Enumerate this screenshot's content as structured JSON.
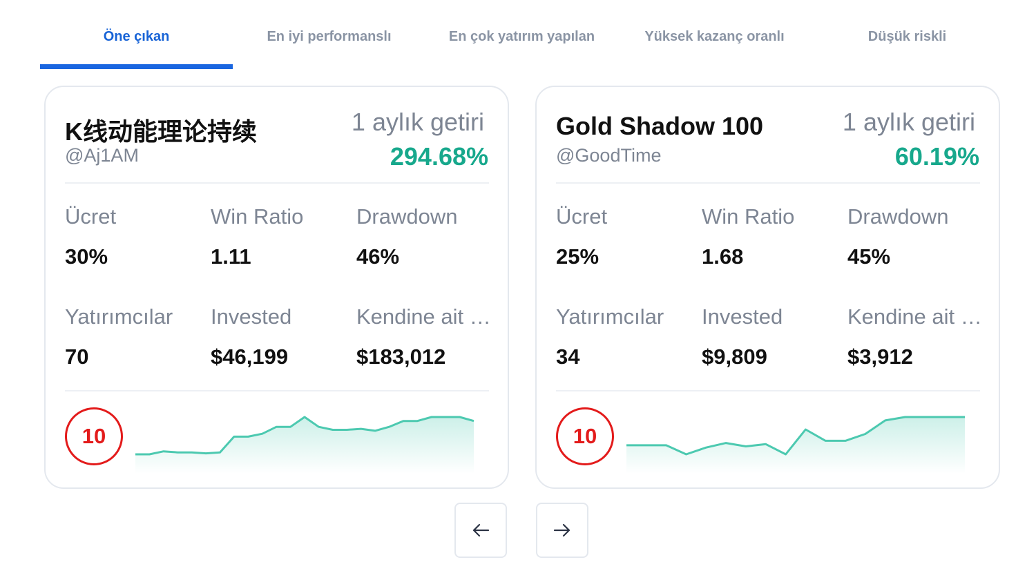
{
  "tabs": [
    {
      "label": "Öne çıkan",
      "active": true
    },
    {
      "label": "En iyi performanslı",
      "active": false
    },
    {
      "label": "En çok yatırım yapılan",
      "active": false
    },
    {
      "label": "Yüksek kazanç oranlı",
      "active": false
    },
    {
      "label": "Düşük riskli",
      "active": false
    }
  ],
  "cards": [
    {
      "title": "K线动能理论持续",
      "handle": "@Aj1AM",
      "return_label": "1 aylık getiri",
      "return_value": "294.68%",
      "fee_label": "Ücret",
      "fee": "30%",
      "win_label": "Win Ratio",
      "win": "1.11",
      "drawdown_label": "Drawdown",
      "drawdown": "46%",
      "investors_label": "Yatırımcılar",
      "investors": "70",
      "invested_label": "Invested",
      "invested": "$46,199",
      "own_label": "Kendine ait fonlar",
      "own": "$183,012",
      "risk": "10",
      "spark": [
        12,
        12,
        15,
        14,
        14,
        13,
        14,
        30,
        30,
        33,
        40,
        40,
        50,
        40,
        37,
        37,
        38,
        36,
        40,
        46,
        46,
        50,
        50,
        50,
        46
      ]
    },
    {
      "title": "Gold Shadow 100",
      "handle": "@GoodTime",
      "return_label": "1 aylık getiri",
      "return_value": "60.19%",
      "fee_label": "Ücret",
      "fee": "25%",
      "win_label": "Win Ratio",
      "win": "1.68",
      "drawdown_label": "Drawdown",
      "drawdown": "45%",
      "investors_label": "Yatırımcılar",
      "investors": "34",
      "invested_label": "Invested",
      "invested": "$9,809",
      "own_label": "Kendine ait fonlar",
      "own": "$3,912",
      "risk": "10",
      "spark": [
        20,
        20,
        20,
        12,
        18,
        22,
        19,
        21,
        12,
        34,
        24,
        24,
        30,
        42,
        45,
        45,
        45,
        45
      ]
    }
  ],
  "accent_color": "#1a66e0",
  "positive_color": "#17a88c",
  "risk_color": "#e31b1b",
  "nav": {
    "prev_icon": "arrow-left-icon",
    "next_icon": "arrow-right-icon"
  }
}
